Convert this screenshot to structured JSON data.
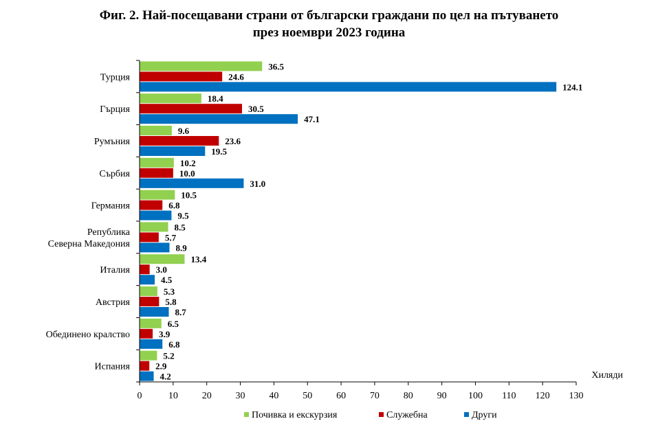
{
  "chart_data": {
    "type": "bar",
    "orientation": "horizontal",
    "title_line1": "Фиг. 2. Най-посещавани страни от български граждани по цел на пътуването",
    "title_line2": "през ноември 2023 година",
    "unit_label": "Хиляди",
    "categories": [
      [
        "Турция"
      ],
      [
        "Гърция"
      ],
      [
        "Румъния"
      ],
      [
        "Сърбия"
      ],
      [
        "Германия"
      ],
      [
        "Република",
        "Северна Македония"
      ],
      [
        "Италия"
      ],
      [
        "Австрия"
      ],
      [
        "Обединено кралство"
      ],
      [
        "Испания"
      ]
    ],
    "series": [
      {
        "name": "Почивка и екскурзия",
        "color": "#92d050",
        "values": [
          36.5,
          18.4,
          9.6,
          10.2,
          10.5,
          8.5,
          13.4,
          5.3,
          6.5,
          5.2
        ]
      },
      {
        "name": "Служебна",
        "color": "#c00000",
        "values": [
          24.6,
          30.5,
          23.6,
          10.0,
          6.8,
          5.7,
          3.0,
          5.8,
          3.9,
          2.9
        ]
      },
      {
        "name": "Други",
        "color": "#0070c0",
        "values": [
          124.1,
          47.1,
          19.5,
          31.0,
          9.5,
          8.9,
          4.5,
          8.7,
          6.8,
          4.2
        ]
      }
    ],
    "xlim": [
      0,
      130
    ],
    "xticks": [
      0,
      10,
      20,
      30,
      40,
      50,
      60,
      70,
      80,
      90,
      100,
      110,
      120,
      130
    ],
    "grid": false,
    "legend_position": "bottom"
  }
}
